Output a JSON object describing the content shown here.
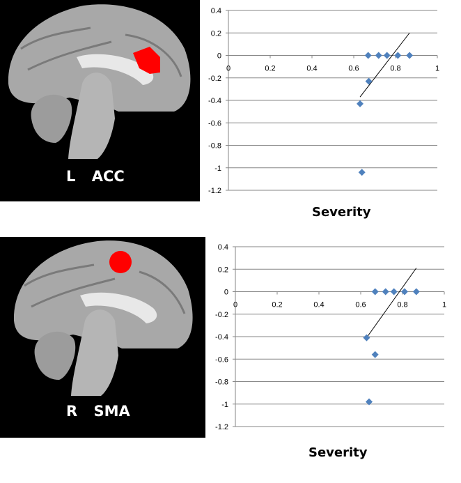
{
  "panels": [
    {
      "label_side": "L",
      "label_region": "ACC",
      "highlight_color": "#ff0000"
    },
    {
      "label_side": "R",
      "label_region": "SMA",
      "highlight_color": "#ff0000"
    }
  ],
  "chart_data": [
    {
      "type": "scatter",
      "xlabel": "Severity",
      "ylabel": "",
      "xlim": [
        0,
        1
      ],
      "ylim": [
        -1.2,
        0.4
      ],
      "xticks": [
        "0",
        "0.2",
        "0.4",
        "0.6",
        "0.8",
        "1"
      ],
      "yticks": [
        "0.4",
        "0.2",
        "0",
        "-0.2",
        "-0.4",
        "-0.6",
        "-0.8",
        "-1",
        "-1.2"
      ],
      "grid": true,
      "marker_color": "#4f81bd",
      "points": [
        {
          "x": 0.669,
          "y": 0
        },
        {
          "x": 0.719,
          "y": 0
        },
        {
          "x": 0.759,
          "y": 0
        },
        {
          "x": 0.811,
          "y": 0
        },
        {
          "x": 0.867,
          "y": 0
        },
        {
          "x": 0.672,
          "y": -0.23
        },
        {
          "x": 0.63,
          "y": -0.43
        },
        {
          "x": 0.639,
          "y": -1.04
        }
      ],
      "trendline": [
        {
          "x": 0.63,
          "y": -0.37
        },
        {
          "x": 0.867,
          "y": 0.2
        }
      ]
    },
    {
      "type": "scatter",
      "xlabel": "Severity",
      "ylabel": "",
      "xlim": [
        0,
        1
      ],
      "ylim": [
        -1.2,
        0.4
      ],
      "xticks": [
        "0",
        "0.2",
        "0.4",
        "0.6",
        "0.8",
        "1"
      ],
      "yticks": [
        "0.4",
        "0.2",
        "0",
        "-0.2",
        "-0.4",
        "-0.6",
        "-0.8",
        "-1",
        "-1.2"
      ],
      "grid": true,
      "marker_color": "#4f81bd",
      "points": [
        {
          "x": 0.669,
          "y": 0
        },
        {
          "x": 0.719,
          "y": 0
        },
        {
          "x": 0.759,
          "y": 0
        },
        {
          "x": 0.81,
          "y": 0
        },
        {
          "x": 0.866,
          "y": 0
        },
        {
          "x": 0.628,
          "y": -0.41
        },
        {
          "x": 0.669,
          "y": -0.56
        },
        {
          "x": 0.64,
          "y": -0.98
        }
      ],
      "trendline": [
        {
          "x": 0.628,
          "y": -0.41
        },
        {
          "x": 0.866,
          "y": 0.21
        }
      ]
    }
  ]
}
